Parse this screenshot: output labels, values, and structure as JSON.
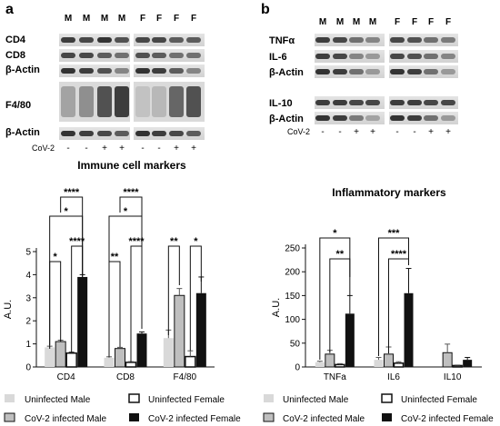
{
  "panel_a": {
    "letter": "a",
    "lane_labels": [
      "M",
      "M",
      "M",
      "M",
      "F",
      "F",
      "F",
      "F"
    ],
    "blot_rows": [
      "CD4",
      "CD8",
      "β-Actin",
      "F4/80",
      "β-Actin"
    ],
    "cov_label": "CoV-2",
    "cov_signs": [
      "-",
      "-",
      "+",
      "+",
      "-",
      "-",
      "+",
      "+"
    ],
    "caption": "Immune cell markers"
  },
  "panel_b": {
    "letter": "b",
    "lane_labels": [
      "M",
      "M",
      "M",
      "M",
      "F",
      "F",
      "F",
      "F"
    ],
    "blot_rows": [
      "TNFα",
      "IL-6",
      "β-Actin",
      "IL-10",
      "β-Actin"
    ],
    "cov_label": "CoV-2",
    "cov_signs": [
      "-",
      "-",
      "+",
      "+",
      "-",
      "-",
      "+",
      "+"
    ],
    "caption": "Inflammatory markers"
  },
  "chart_data": [
    {
      "type": "bar",
      "title": "",
      "xlabel": "",
      "ylabel": "A.U.",
      "ylim": [
        0,
        5
      ],
      "yticks": [
        "0",
        "1",
        "2",
        "3",
        "4",
        "5"
      ],
      "categories": [
        "CD4",
        "CD8",
        "F4/80"
      ],
      "series": [
        {
          "name": "Uninfected Male",
          "values": [
            0.85,
            0.4,
            1.25
          ],
          "errors": [
            0.05,
            0.04,
            0.35
          ],
          "color": "#d9d9d9"
        },
        {
          "name": "CoV-2 infected Male",
          "values": [
            1.1,
            0.8,
            3.1
          ],
          "errors": [
            0.06,
            0.05,
            0.3
          ],
          "color": "#bfbfbf"
        },
        {
          "name": "Uninfected Female",
          "values": [
            0.6,
            0.2,
            0.45
          ],
          "errors": [
            0.05,
            0.03,
            0.25
          ],
          "color": "#ffffff"
        },
        {
          "name": "CoV-2 infected Female",
          "values": [
            3.9,
            1.45,
            3.2
          ],
          "errors": [
            0.1,
            0.07,
            0.7
          ],
          "color": "#111111"
        }
      ],
      "significance": [
        {
          "category": 0,
          "from": 0,
          "to": 1,
          "label": "*"
        },
        {
          "category": 0,
          "from": 2,
          "to": 3,
          "label": "****"
        },
        {
          "category": 0,
          "from": 0,
          "to": 3,
          "label": "*"
        },
        {
          "category": 0,
          "from": 1,
          "to": 3,
          "label": "****"
        },
        {
          "category": 1,
          "from": 0,
          "to": 1,
          "label": "**"
        },
        {
          "category": 1,
          "from": 2,
          "to": 3,
          "label": "****"
        },
        {
          "category": 1,
          "from": 0,
          "to": 3,
          "label": "*"
        },
        {
          "category": 1,
          "from": 1,
          "to": 3,
          "label": "****"
        },
        {
          "category": 2,
          "from": 0,
          "to": 1,
          "label": "**"
        },
        {
          "category": 2,
          "from": 2,
          "to": 3,
          "label": "*"
        }
      ]
    },
    {
      "type": "bar",
      "title": "",
      "xlabel": "",
      "ylabel": "A.U.",
      "ylim": [
        0,
        250
      ],
      "yticks": [
        "0",
        "50",
        "100",
        "150",
        "200",
        "250"
      ],
      "categories": [
        "TNFa",
        "IL6",
        "IL10"
      ],
      "series": [
        {
          "name": "Uninfected Male",
          "values": [
            10,
            15,
            0
          ],
          "errors": [
            2,
            5,
            0
          ],
          "color": "#d9d9d9"
        },
        {
          "name": "CoV-2 infected Male",
          "values": [
            27,
            27,
            30
          ],
          "errors": [
            8,
            15,
            18
          ],
          "color": "#bfbfbf"
        },
        {
          "name": "Uninfected Female",
          "values": [
            5,
            8,
            3
          ],
          "errors": [
            2,
            3,
            1
          ],
          "color": "#ffffff"
        },
        {
          "name": "CoV-2 infected Female",
          "values": [
            112,
            155,
            15
          ],
          "errors": [
            38,
            52,
            5
          ],
          "color": "#111111"
        }
      ],
      "significance": [
        {
          "category": 0,
          "from": 0,
          "to": 3,
          "label": "*"
        },
        {
          "category": 0,
          "from": 1,
          "to": 3,
          "label": "**"
        },
        {
          "category": 1,
          "from": 0,
          "to": 3,
          "label": "***"
        },
        {
          "category": 1,
          "from": 1,
          "to": 3,
          "label": "****"
        }
      ]
    }
  ],
  "legend": [
    "Uninfected Male",
    "Uninfected Female",
    "CoV-2 infected Male",
    "CoV-2 infected Female"
  ]
}
